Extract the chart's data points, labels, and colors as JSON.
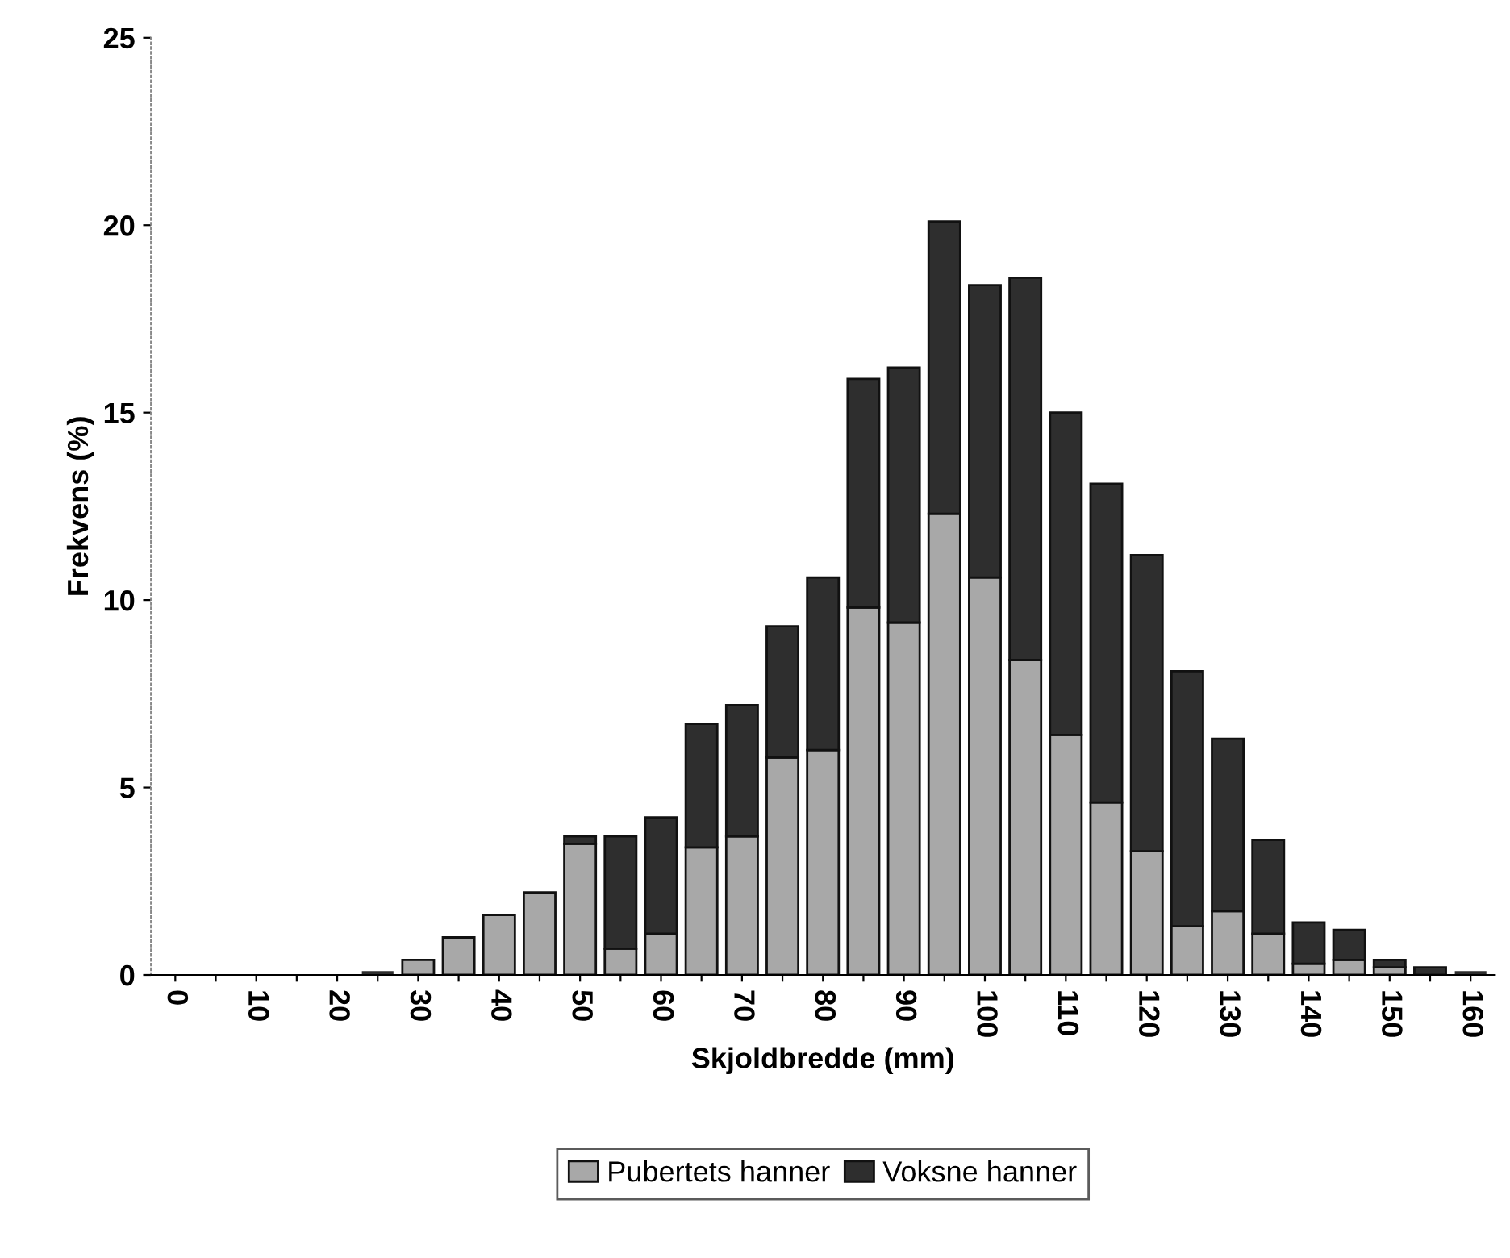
{
  "chart_data": {
    "type": "bar",
    "stacked": true,
    "xlabel": "Skjoldbredde (mm)",
    "ylabel": "Frekvens (%)",
    "categories": [
      "0",
      null,
      "10",
      null,
      "20",
      null,
      "30",
      null,
      "40",
      null,
      "50",
      null,
      "60",
      null,
      "70",
      null,
      "80",
      null,
      "90",
      null,
      "100",
      null,
      "110",
      null,
      "120",
      null,
      "130",
      null,
      "140",
      null,
      "150",
      null,
      "160"
    ],
    "series": [
      {
        "name": "Pubertets hanner",
        "color": "#a8a8a8",
        "values": [
          0,
          0,
          0,
          0,
          0,
          0,
          0.4,
          1.0,
          1.6,
          2.2,
          3.5,
          0.7,
          1.1,
          3.4,
          3.7,
          5.8,
          6.0,
          9.8,
          9.4,
          12.3,
          10.6,
          8.4,
          6.4,
          4.6,
          3.3,
          1.3,
          1.7,
          1.1,
          0.3,
          0.4,
          0.2,
          0,
          0
        ]
      },
      {
        "name": "Voksne hanner",
        "color": "#2e2e2e",
        "values": [
          0,
          0,
          0,
          0,
          0,
          0.1,
          0,
          0,
          0,
          0,
          0.2,
          3.0,
          3.1,
          3.3,
          3.5,
          3.5,
          4.6,
          6.1,
          6.8,
          7.8,
          7.8,
          10.2,
          8.6,
          8.5,
          7.9,
          6.8,
          4.6,
          2.5,
          1.1,
          0.8,
          0.2,
          0.2,
          0.1
        ]
      }
    ],
    "ylim": [
      0,
      25
    ],
    "yticks": [
      0,
      5,
      10,
      15,
      20,
      25
    ],
    "grid": false,
    "legend": "bottom"
  }
}
